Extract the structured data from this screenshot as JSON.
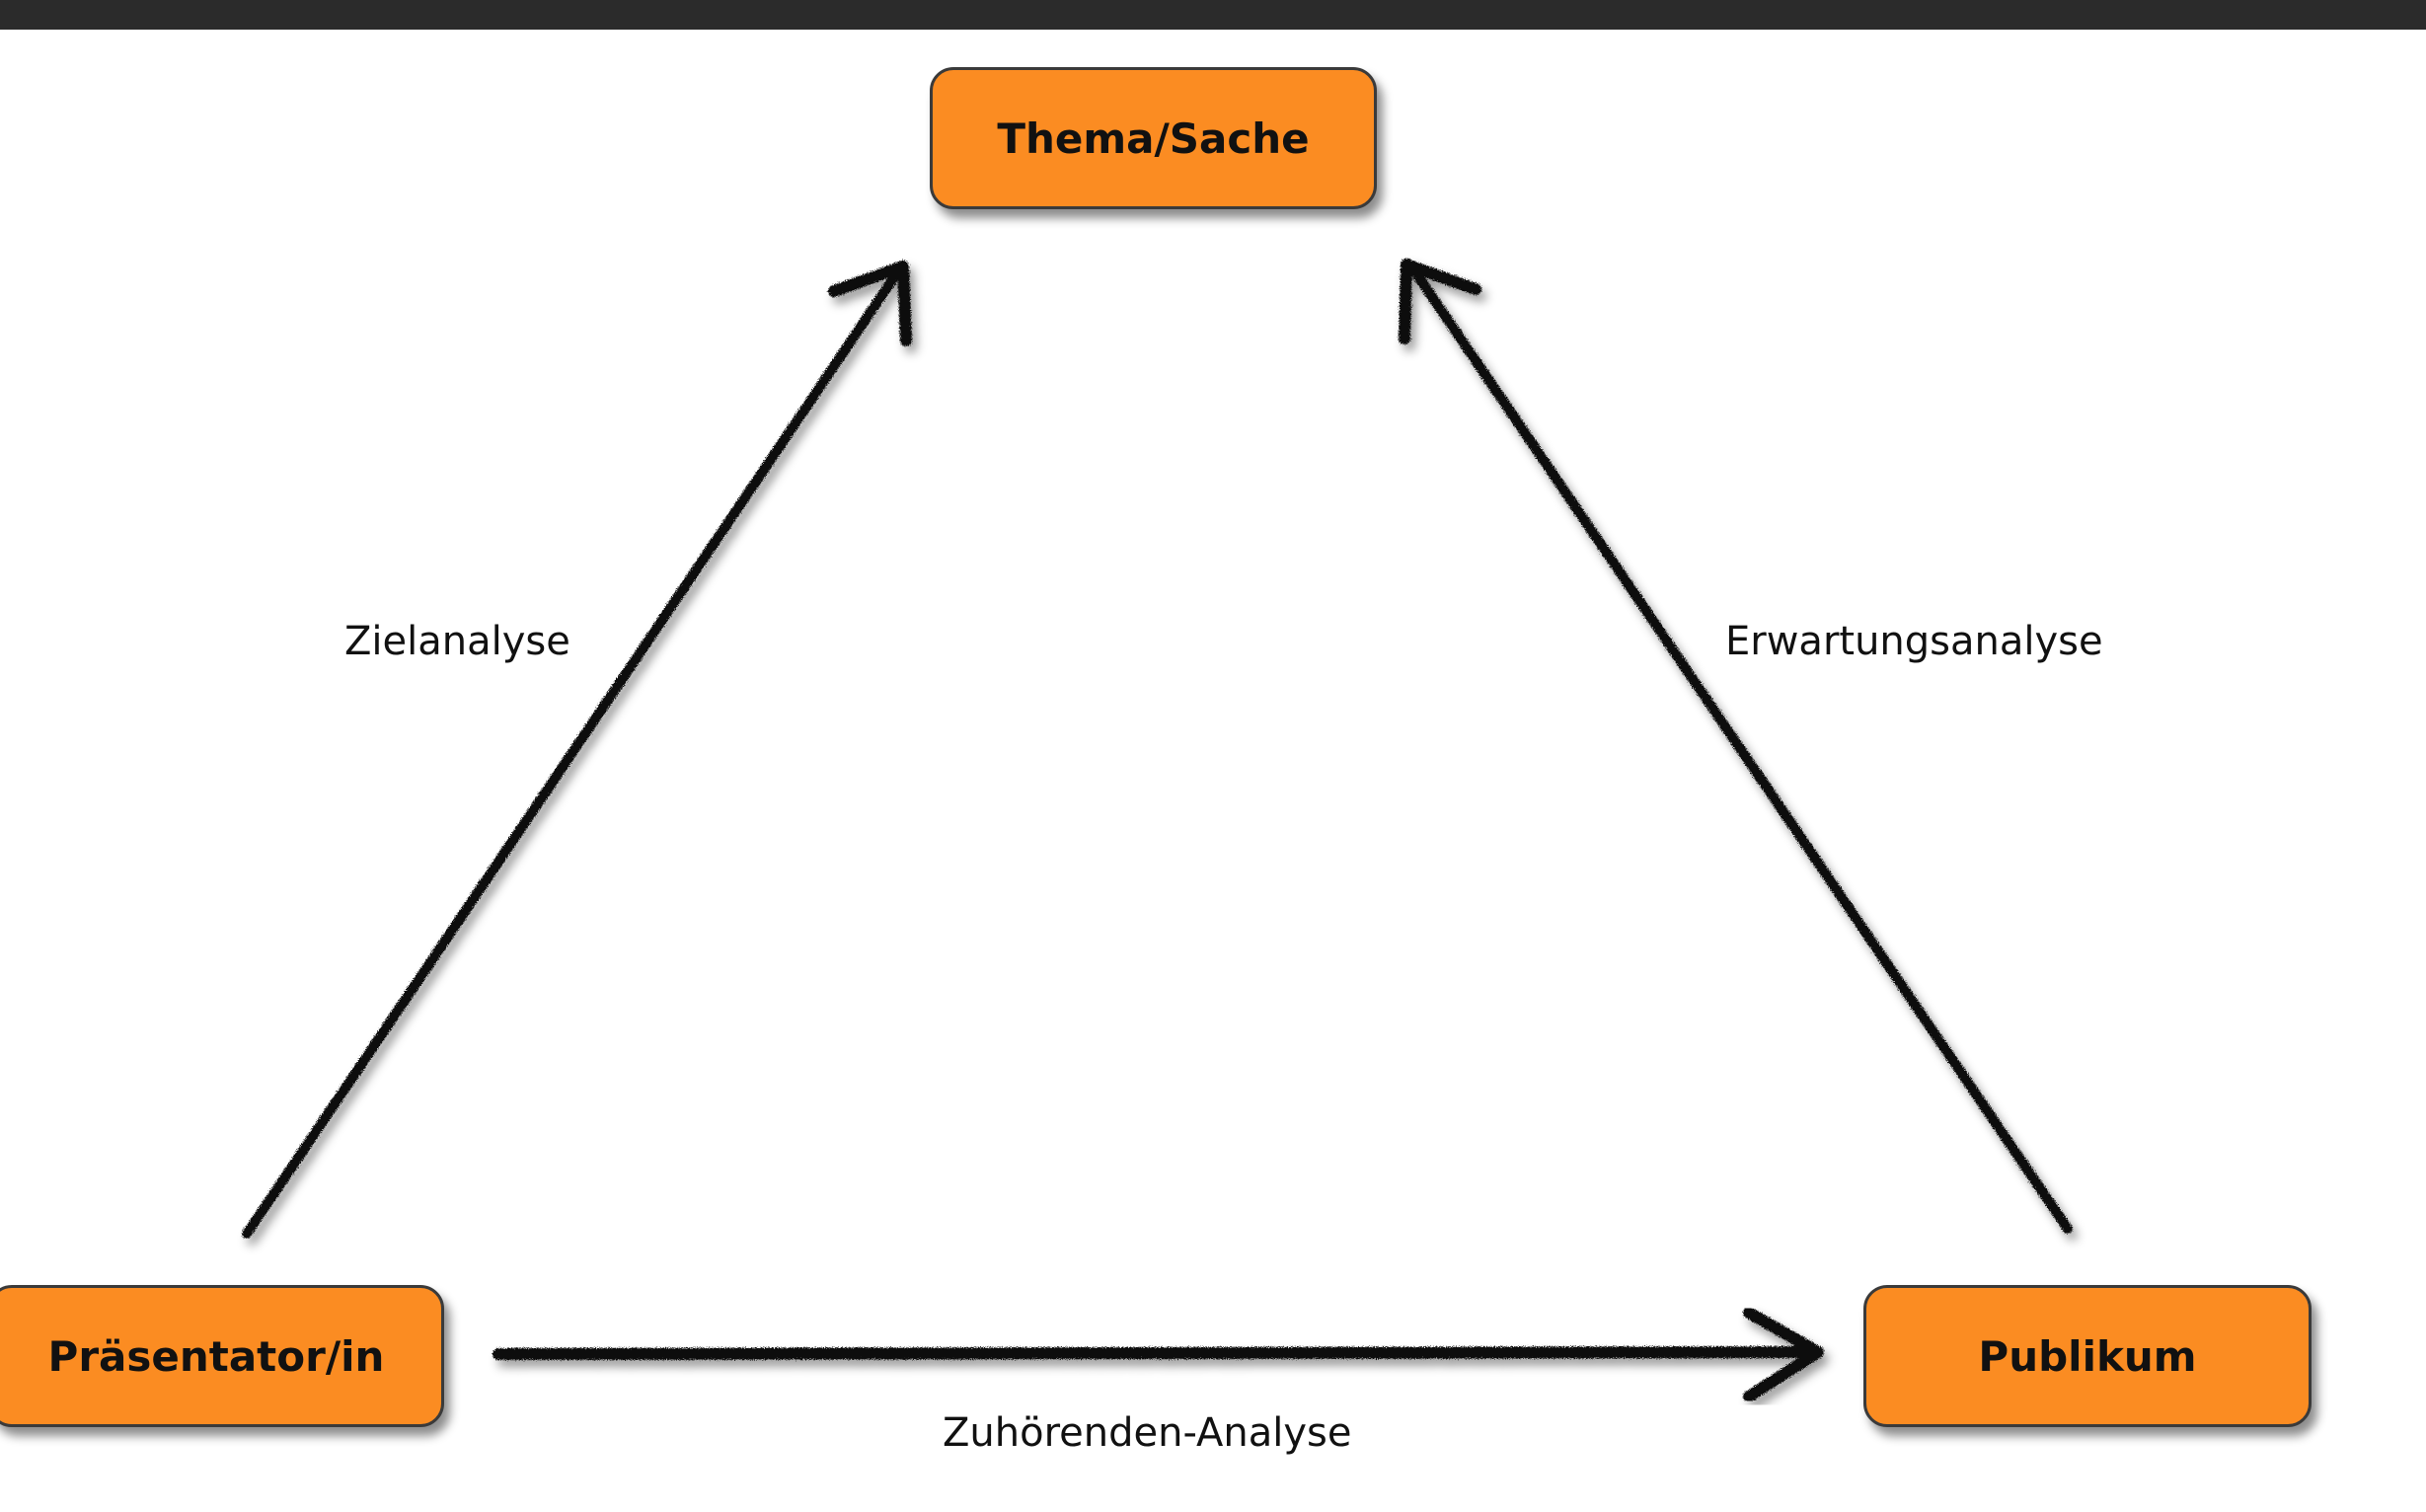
{
  "colors": {
    "node_fill": "#fb8c22",
    "arrow": "#111111",
    "top_bar": "#2b2b2b",
    "background": "#ffffff"
  },
  "nodes": {
    "top": "Thema/Sache",
    "left": "Präsentator/in",
    "right": "Publikum"
  },
  "edges": {
    "left": "Zielanalyse",
    "right": "Erwartungsanalyse",
    "bottom": "Zuhörenden-Analyse"
  }
}
